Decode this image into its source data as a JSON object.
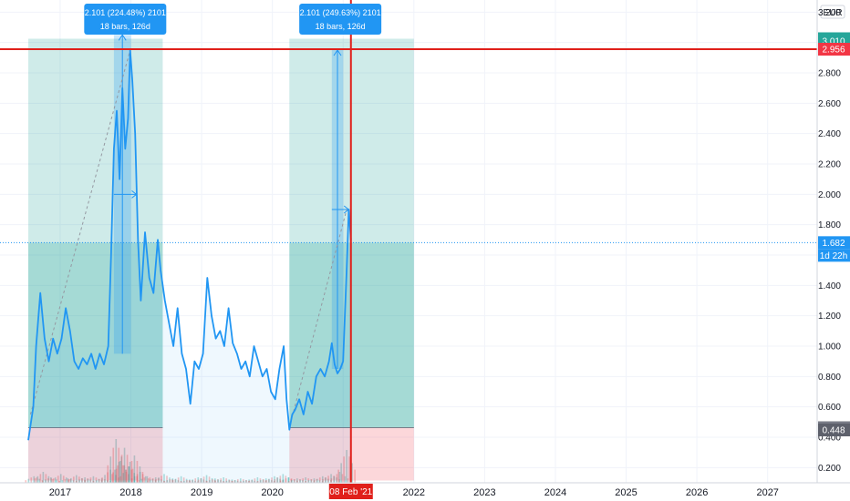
{
  "chart_data": {
    "type": "line",
    "currency_label": "EUR",
    "y_ticks": [
      "3.200",
      "3.000",
      "2.800",
      "2.600",
      "2.400",
      "2.200",
      "2.000",
      "1.800",
      "1.600",
      "1.400",
      "1.200",
      "1.000",
      "0.800",
      "0.600",
      "0.400",
      "0.200"
    ],
    "y_tick_values": [
      3.2,
      3.0,
      2.8,
      2.6,
      2.4,
      2.2,
      2.0,
      1.8,
      1.6,
      1.4,
      1.2,
      1.0,
      0.8,
      0.6,
      0.4,
      0.2
    ],
    "x_ticks": [
      "2017",
      "2018",
      "2019",
      "2020",
      "2021",
      "2022",
      "2023",
      "2024",
      "2025",
      "2026",
      "2027"
    ],
    "x_tick_years": [
      2017,
      2018,
      2019,
      2020,
      2021,
      2022,
      2023,
      2024,
      2025,
      2026,
      2027
    ],
    "ylim": [
      0.1,
      3.28
    ],
    "xlim": [
      2016.15,
      2027.7
    ],
    "grid": true,
    "series": [
      {
        "x": [
          2016.55,
          2016.62,
          2016.66,
          2016.72,
          2016.78,
          2016.84,
          2016.9,
          2016.96,
          2017.02,
          2017.08,
          2017.14,
          2017.2,
          2017.26,
          2017.32,
          2017.38,
          2017.44,
          2017.5,
          2017.56,
          2017.62,
          2017.68,
          2017.72,
          2017.76,
          2017.8,
          2017.84,
          2017.88,
          2017.92,
          2017.96,
          2017.99,
          2018.02,
          2018.06,
          2018.1,
          2018.14,
          2018.2,
          2018.26,
          2018.32,
          2018.38,
          2018.42,
          2018.48,
          2018.54,
          2018.6,
          2018.66,
          2018.72,
          2018.78,
          2018.84,
          2018.9,
          2018.96,
          2019.02,
          2019.08,
          2019.14,
          2019.2,
          2019.26,
          2019.32,
          2019.38,
          2019.44,
          2019.5,
          2019.56,
          2019.62,
          2019.68,
          2019.74,
          2019.8,
          2019.86,
          2019.92,
          2019.98,
          2020.04,
          2020.1,
          2020.16,
          2020.2,
          2020.24,
          2020.28,
          2020.32,
          2020.38,
          2020.44,
          2020.5,
          2020.56,
          2020.62,
          2020.68,
          2020.74,
          2020.8,
          2020.84,
          2020.88,
          2020.92,
          2020.96,
          2021.0,
          2021.02,
          2021.05,
          2021.08,
          2021.11
        ],
        "values": [
          0.38,
          0.6,
          1.0,
          1.35,
          1.05,
          0.9,
          1.05,
          0.95,
          1.05,
          1.25,
          1.1,
          0.9,
          0.85,
          0.92,
          0.88,
          0.95,
          0.85,
          0.95,
          0.88,
          1.0,
          1.6,
          2.3,
          2.55,
          2.1,
          2.7,
          2.3,
          2.5,
          2.95,
          2.75,
          2.4,
          1.7,
          1.3,
          1.75,
          1.45,
          1.35,
          1.7,
          1.5,
          1.3,
          1.15,
          1.0,
          1.25,
          0.95,
          0.85,
          0.62,
          0.9,
          0.85,
          0.95,
          1.45,
          1.2,
          1.05,
          1.1,
          1.0,
          1.25,
          1.02,
          0.95,
          0.85,
          0.9,
          0.8,
          1.0,
          0.9,
          0.8,
          0.85,
          0.7,
          0.65,
          0.85,
          1.0,
          0.65,
          0.45,
          0.55,
          0.58,
          0.65,
          0.55,
          0.7,
          0.62,
          0.8,
          0.85,
          0.8,
          0.9,
          1.02,
          0.88,
          0.82,
          0.85,
          0.9,
          1.15,
          1.5,
          1.9,
          1.7
        ]
      }
    ],
    "volume_bars": [
      {
        "x": 2016.62,
        "v": 0.06
      },
      {
        "x": 2016.75,
        "v": 0.1
      },
      {
        "x": 2016.86,
        "v": 0.05
      },
      {
        "x": 2017.0,
        "v": 0.08
      },
      {
        "x": 2017.1,
        "v": 0.04
      },
      {
        "x": 2017.22,
        "v": 0.07
      },
      {
        "x": 2017.34,
        "v": 0.05
      },
      {
        "x": 2017.46,
        "v": 0.06
      },
      {
        "x": 2017.58,
        "v": 0.04
      },
      {
        "x": 2017.7,
        "v": 0.12
      },
      {
        "x": 2017.78,
        "v": 0.4
      },
      {
        "x": 2017.84,
        "v": 0.2
      },
      {
        "x": 2017.9,
        "v": 0.32
      },
      {
        "x": 2017.96,
        "v": 0.15
      },
      {
        "x": 2018.04,
        "v": 0.25
      },
      {
        "x": 2018.12,
        "v": 0.1
      },
      {
        "x": 2018.22,
        "v": 0.06
      },
      {
        "x": 2018.34,
        "v": 0.05
      },
      {
        "x": 2018.46,
        "v": 0.08
      },
      {
        "x": 2018.58,
        "v": 0.04
      },
      {
        "x": 2018.7,
        "v": 0.06
      },
      {
        "x": 2018.82,
        "v": 0.03
      },
      {
        "x": 2018.94,
        "v": 0.05
      },
      {
        "x": 2019.06,
        "v": 0.07
      },
      {
        "x": 2019.18,
        "v": 0.04
      },
      {
        "x": 2019.3,
        "v": 0.05
      },
      {
        "x": 2019.42,
        "v": 0.03
      },
      {
        "x": 2019.54,
        "v": 0.04
      },
      {
        "x": 2019.66,
        "v": 0.03
      },
      {
        "x": 2019.78,
        "v": 0.05
      },
      {
        "x": 2019.9,
        "v": 0.04
      },
      {
        "x": 2020.02,
        "v": 0.06
      },
      {
        "x": 2020.14,
        "v": 0.08
      },
      {
        "x": 2020.22,
        "v": 0.05
      },
      {
        "x": 2020.34,
        "v": 0.04
      },
      {
        "x": 2020.46,
        "v": 0.05
      },
      {
        "x": 2020.58,
        "v": 0.04
      },
      {
        "x": 2020.7,
        "v": 0.06
      },
      {
        "x": 2020.82,
        "v": 0.08
      },
      {
        "x": 2020.94,
        "v": 0.1
      },
      {
        "x": 2021.04,
        "v": 0.3
      }
    ],
    "measure_tooltips": [
      {
        "line1": "2.101 (224.48%) 2101",
        "line2": "18 bars, 126d",
        "x": 2017.92
      },
      {
        "line1": "2.101 (249.63%) 2101",
        "line2": "18 bars, 126d",
        "x": 2020.96
      }
    ],
    "positions": [
      {
        "x1": 2016.55,
        "x2": 2018.45,
        "entry": 0.463,
        "target": 3.025,
        "stop": 0.115
      },
      {
        "x1": 2020.24,
        "x2": 2022.0,
        "entry": 0.463,
        "target": 3.025,
        "stop": 0.115
      }
    ],
    "measure_ranges": [
      {
        "x1": 2017.76,
        "x2": 2018.0,
        "y1": 0.95,
        "y2": 3.05
      },
      {
        "x1": 2020.84,
        "x2": 2021.0,
        "y1": 0.85,
        "y2": 2.95
      }
    ],
    "crosshair": {
      "x": 2021.11,
      "y": 2.956,
      "x_label": "08 Feb '21"
    },
    "price_badges": [
      {
        "label": "3.025",
        "value": 3.025,
        "color": "#26a69a"
      },
      {
        "label": "3.010",
        "value": 3.01,
        "color": "#26a69a"
      },
      {
        "label": "2.956",
        "value": 2.956,
        "color": "#f23645"
      },
      {
        "label": "1.682",
        "value": 1.682,
        "color": "#2196f3"
      },
      {
        "label": "0.463",
        "value": 0.463,
        "color": "#787b86"
      },
      {
        "label": "0.448",
        "value": 0.448,
        "color": "#5d606b"
      }
    ],
    "countdown_label": "1d 22h",
    "last_price": 1.682
  }
}
